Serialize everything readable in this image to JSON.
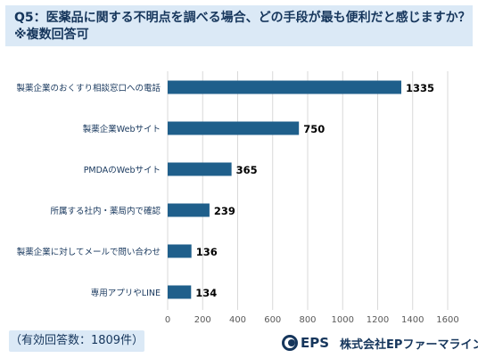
{
  "header": {
    "line1": "Q5：医薬品に関する不明点を調べる場合、どの手段が最も便利だと感じますか？",
    "line2": "※複数回答可"
  },
  "footer": {
    "respondents": "（有効回答数：1809件）",
    "logo_brand": "EPS",
    "logo_company": "株式会社EPファーマライン"
  },
  "colors": {
    "bar": "#1f5f8b",
    "header_bg": "#dbe9f6",
    "text_dark": "#16365c",
    "grid": "#d9d9d9"
  },
  "chart_data": {
    "type": "bar",
    "orientation": "horizontal",
    "categories": [
      "製薬企業のおくすり相談窓口への電話",
      "製薬企業Webサイト",
      "PMDAのWebサイト",
      "所属する社内・薬局内で確認",
      "製薬企業に対してメールで問い合わせ",
      "専用アプリやLINE"
    ],
    "values": [
      1335,
      750,
      365,
      239,
      136,
      134
    ],
    "xlim": [
      0,
      1600
    ],
    "xticks": [
      0,
      200,
      400,
      600,
      800,
      1000,
      1200,
      1400,
      1600
    ],
    "grid": true,
    "legend": "none"
  }
}
